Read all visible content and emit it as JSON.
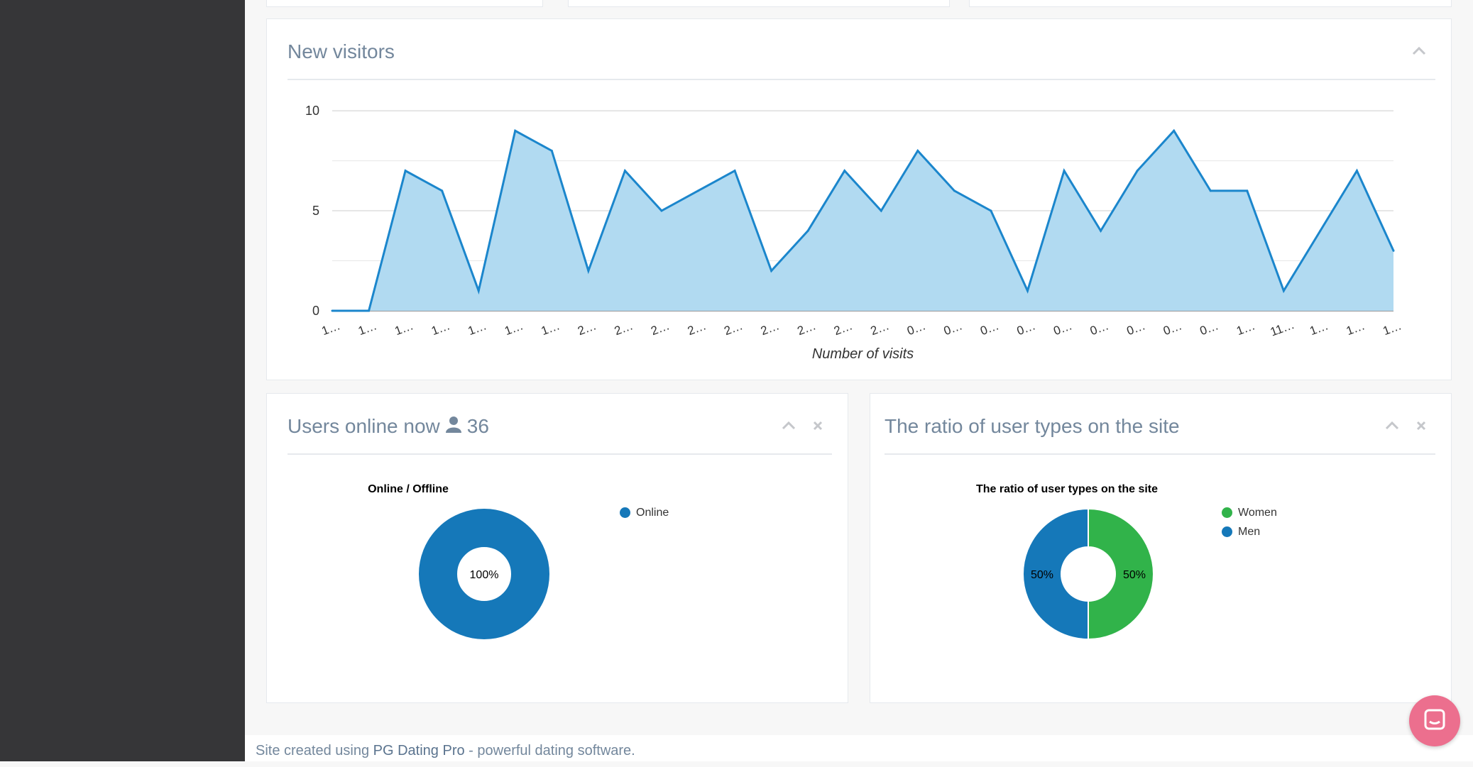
{
  "new_visitors": {
    "title": "New visitors",
    "chart_data": {
      "type": "area",
      "title": "",
      "xlabel": "Number of visits",
      "ylabel": "",
      "ylim": [
        0,
        10.5
      ],
      "yticks": [
        0,
        5,
        10
      ],
      "x": [
        "1…",
        "1…",
        "1…",
        "1…",
        "1…",
        "1…",
        "1…",
        "2…",
        "2…",
        "2…",
        "2…",
        "2…",
        "2…",
        "2…",
        "2…",
        "2…",
        "0…",
        "0…",
        "0…",
        "0…",
        "0…",
        "0…",
        "0…",
        "0…",
        "0…",
        "1…",
        "11…",
        "1…",
        "1…",
        "1…"
      ],
      "series": [
        {
          "values": [
            0,
            0,
            7,
            6,
            1,
            9,
            8,
            2,
            7,
            5,
            6,
            7,
            2,
            4,
            7,
            5,
            8,
            6,
            5,
            1,
            7,
            4,
            7,
            9,
            6,
            6,
            1,
            4,
            7,
            3
          ]
        }
      ],
      "colors": {
        "line": "#1b86cc",
        "fill": "#b1daf1"
      },
      "grid": true
    }
  },
  "users_online": {
    "title": "Users online now",
    "count": "36",
    "chart_data": {
      "type": "pie",
      "title": "Online / Offline",
      "categories": [
        "Online"
      ],
      "values": [
        100
      ],
      "labels": [
        "100%"
      ],
      "colors": [
        "#1578b9"
      ],
      "legend_position": "top-right"
    }
  },
  "user_ratio": {
    "title": "The ratio of user types on the site",
    "chart_data": {
      "type": "pie",
      "title": "The ratio of user types on the site",
      "categories": [
        "Women",
        "Men"
      ],
      "values": [
        50,
        50
      ],
      "labels": [
        "50%",
        "50%"
      ],
      "colors": [
        "#31b34a",
        "#1578b9"
      ],
      "legend_position": "top-right"
    }
  },
  "footer": {
    "prefix": "Site created using ",
    "link": "PG Dating Pro",
    "suffix": " - powerful dating software."
  },
  "icons": {
    "collapse": "chevron-up-icon",
    "close": "close-icon",
    "user": "user-icon",
    "chat": "chat-icon"
  }
}
